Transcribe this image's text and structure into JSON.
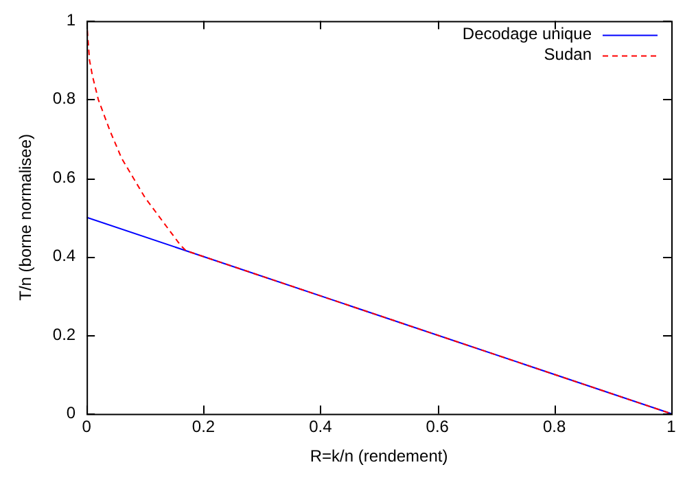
{
  "chart_data": {
    "type": "line",
    "xlabel": "R=k/n (rendement)",
    "ylabel": "T/n (borne normalisee)",
    "xlim": [
      0,
      1
    ],
    "ylim": [
      0,
      1
    ],
    "xticks": [
      0,
      0.2,
      0.4,
      0.6,
      0.8,
      1
    ],
    "yticks": [
      0,
      0.2,
      0.4,
      0.6,
      0.8,
      1
    ],
    "grid": false,
    "legend": "top right",
    "marker": "none",
    "series": [
      {
        "name": "Decodage unique",
        "color": "#0000ff",
        "line_style": "solid",
        "x": [
          0,
          1
        ],
        "values": [
          0.5,
          0
        ]
      },
      {
        "name": "Sudan",
        "color": "#ff0000",
        "line_style": "dashed",
        "x": [
          0,
          0.005,
          0.01,
          0.02,
          0.04,
          0.06,
          0.08,
          0.1,
          0.12,
          0.14,
          0.16,
          0.17,
          1
        ],
        "values": [
          1,
          0.9,
          0.86,
          0.8,
          0.72,
          0.65,
          0.6,
          0.55,
          0.51,
          0.47,
          0.43,
          0.415,
          0
        ]
      }
    ]
  }
}
